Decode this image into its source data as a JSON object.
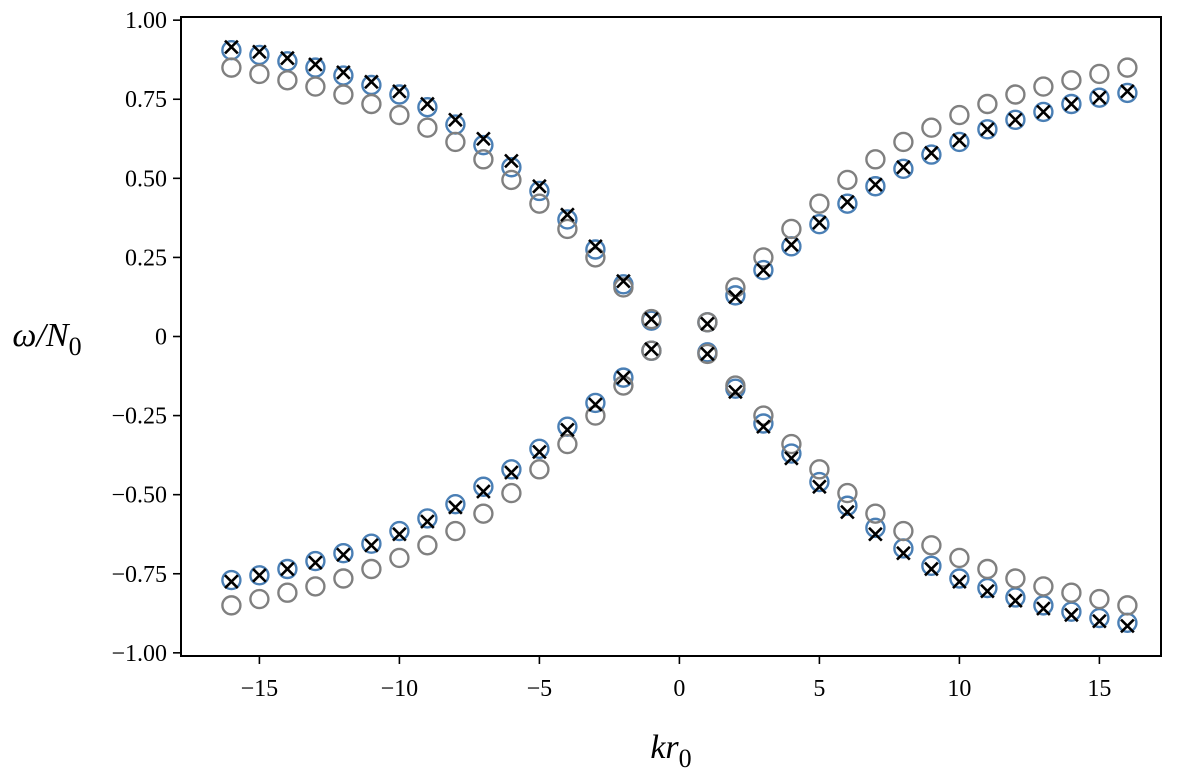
{
  "chart_data": {
    "type": "scatter",
    "xlabel": {
      "main": "kr",
      "sub": "0"
    },
    "ylabel": {
      "main": "ω/N",
      "sub": "0"
    },
    "xlim": [
      -17.8,
      17.2
    ],
    "ylim": [
      -1.01,
      1.01
    ],
    "xticks": [
      {
        "value": -15,
        "label": "−15"
      },
      {
        "value": -10,
        "label": "−10"
      },
      {
        "value": -5,
        "label": "−5"
      },
      {
        "value": 0,
        "label": "0"
      },
      {
        "value": 5,
        "label": "5"
      },
      {
        "value": 10,
        "label": "10"
      },
      {
        "value": 15,
        "label": "15"
      }
    ],
    "yticks": [
      {
        "value": 1.0,
        "label": "1.00"
      },
      {
        "value": 0.75,
        "label": "0.75"
      },
      {
        "value": 0.5,
        "label": "0.50"
      },
      {
        "value": 0.25,
        "label": "0.25"
      },
      {
        "value": 0,
        "label": "0"
      },
      {
        "value": -0.25,
        "label": "−0.25"
      },
      {
        "value": -0.5,
        "label": "−0.50"
      },
      {
        "value": -0.75,
        "label": "−0.75"
      },
      {
        "value": -1.0,
        "label": "−1.00"
      }
    ],
    "grid": false,
    "colors": {
      "blue": "#4a7fb5",
      "gray": "#808080",
      "black": "#000000"
    },
    "x": [
      -16,
      -15,
      -14,
      -13,
      -12,
      -11,
      -10,
      -9,
      -8,
      -7,
      -6,
      -5,
      -4,
      -3,
      -2,
      -1,
      1,
      2,
      3,
      4,
      5,
      6,
      7,
      8,
      9,
      10,
      11,
      12,
      13,
      14,
      15,
      16
    ],
    "series": [
      {
        "marker": "circle",
        "color": "#4a7fb5",
        "upper": [
          0.905,
          0.89,
          0.87,
          0.85,
          0.825,
          0.795,
          0.765,
          0.725,
          0.67,
          0.605,
          0.535,
          0.46,
          0.37,
          0.275,
          0.165,
          0.05,
          0.045,
          0.13,
          0.21,
          0.285,
          0.355,
          0.42,
          0.475,
          0.53,
          0.575,
          0.615,
          0.655,
          0.685,
          0.71,
          0.735,
          0.755,
          0.77
        ],
        "lower": [
          -0.77,
          -0.755,
          -0.735,
          -0.71,
          -0.685,
          -0.655,
          -0.615,
          -0.575,
          -0.53,
          -0.475,
          -0.42,
          -0.355,
          -0.285,
          -0.21,
          -0.13,
          -0.045,
          -0.05,
          -0.165,
          -0.275,
          -0.37,
          -0.46,
          -0.535,
          -0.605,
          -0.67,
          -0.725,
          -0.765,
          -0.795,
          -0.825,
          -0.85,
          -0.87,
          -0.89,
          -0.905
        ]
      },
      {
        "marker": "circle",
        "color": "#808080",
        "upper": [
          0.85,
          0.83,
          0.81,
          0.79,
          0.765,
          0.735,
          0.7,
          0.66,
          0.615,
          0.56,
          0.495,
          0.42,
          0.34,
          0.25,
          0.155,
          0.055,
          0.045,
          0.155,
          0.25,
          0.34,
          0.42,
          0.495,
          0.56,
          0.615,
          0.66,
          0.7,
          0.735,
          0.765,
          0.79,
          0.81,
          0.83,
          0.85
        ],
        "lower": [
          -0.85,
          -0.83,
          -0.81,
          -0.79,
          -0.765,
          -0.735,
          -0.7,
          -0.66,
          -0.615,
          -0.56,
          -0.495,
          -0.42,
          -0.34,
          -0.25,
          -0.155,
          -0.045,
          -0.055,
          -0.155,
          -0.25,
          -0.34,
          -0.42,
          -0.495,
          -0.56,
          -0.615,
          -0.66,
          -0.7,
          -0.735,
          -0.765,
          -0.79,
          -0.81,
          -0.83,
          -0.85
        ]
      },
      {
        "marker": "x",
        "color": "#000000",
        "upper": [
          0.915,
          0.9,
          0.88,
          0.86,
          0.835,
          0.805,
          0.775,
          0.735,
          0.685,
          0.625,
          0.555,
          0.475,
          0.385,
          0.285,
          0.175,
          0.055,
          0.04,
          0.125,
          0.21,
          0.29,
          0.36,
          0.425,
          0.48,
          0.535,
          0.58,
          0.62,
          0.655,
          0.685,
          0.71,
          0.735,
          0.755,
          0.775
        ],
        "lower": [
          -0.775,
          -0.755,
          -0.735,
          -0.715,
          -0.69,
          -0.66,
          -0.625,
          -0.585,
          -0.54,
          -0.49,
          -0.43,
          -0.365,
          -0.295,
          -0.215,
          -0.13,
          -0.04,
          -0.055,
          -0.175,
          -0.285,
          -0.385,
          -0.475,
          -0.555,
          -0.625,
          -0.685,
          -0.735,
          -0.775,
          -0.805,
          -0.835,
          -0.86,
          -0.88,
          -0.9,
          -0.915
        ]
      }
    ]
  }
}
